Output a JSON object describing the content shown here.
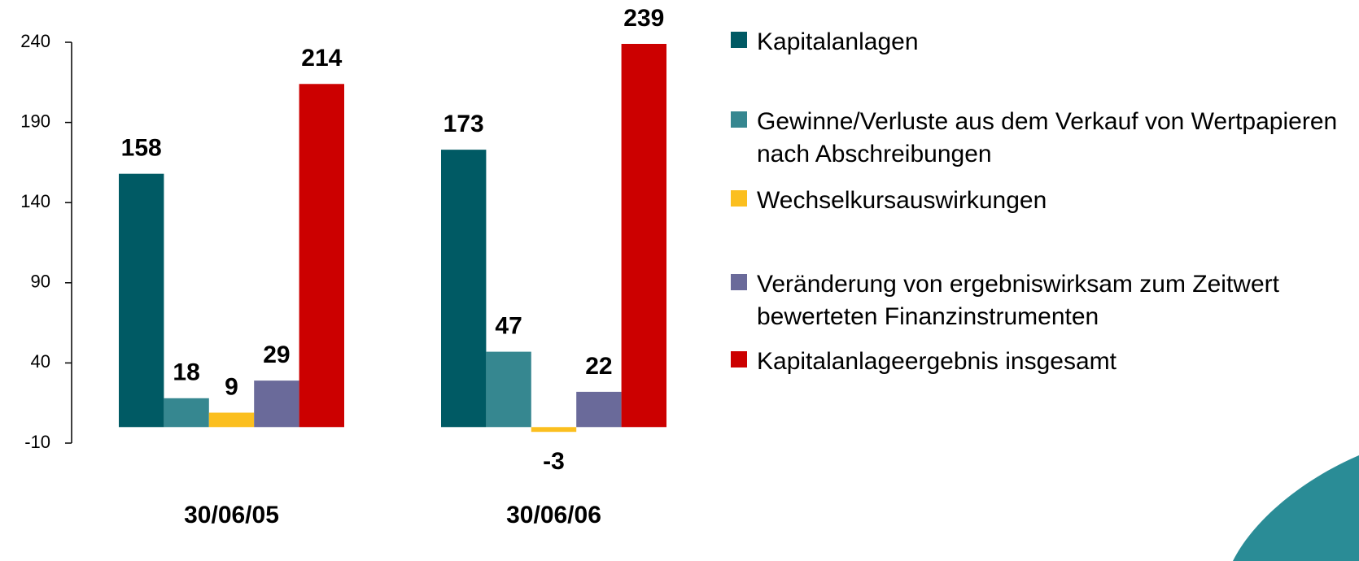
{
  "chart_data": {
    "type": "bar",
    "categories": [
      "30/06/05",
      "30/06/06"
    ],
    "series": [
      {
        "name": "Kapitalanlagen",
        "color": "#005a64",
        "values": [
          158,
          173
        ]
      },
      {
        "name": "Gewinne/Verluste aus dem Verkauf von Wertpapieren nach Abschreibungen",
        "color": "#368790",
        "values": [
          18,
          47
        ]
      },
      {
        "name": "Wechselkursauswirkungen",
        "color": "#fbbf1f",
        "values": [
          9,
          -3
        ]
      },
      {
        "name": "Veränderung von ergebniswirksam zum Zeitwert bewerteten Finanzinstrumenten",
        "color": "#6a6a9a",
        "values": [
          29,
          22
        ]
      },
      {
        "name": "Kapitalanlageergebnis insgesamt",
        "color": "#cc0000",
        "values": [
          214,
          239
        ]
      }
    ],
    "ylim": [
      -10,
      240
    ],
    "yticks": [
      -10,
      40,
      90,
      140,
      190,
      240
    ],
    "legend": "right"
  }
}
